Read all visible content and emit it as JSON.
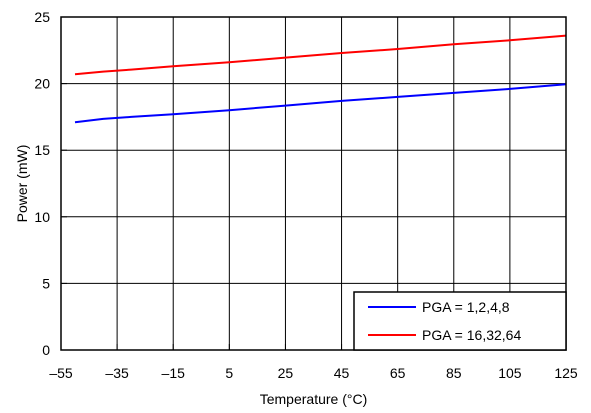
{
  "chart_data": {
    "type": "line",
    "title": "",
    "xlabel": "Temperature (°C)",
    "ylabel": "Power (mW)",
    "xlim": [
      -55,
      125
    ],
    "ylim": [
      0,
      25
    ],
    "x_ticks": [
      -55,
      -35,
      -15,
      5,
      25,
      45,
      65,
      85,
      105,
      125
    ],
    "x_tick_labels": [
      "–55",
      "–35",
      "–15",
      "5",
      "25",
      "45",
      "65",
      "85",
      "105",
      "125"
    ],
    "y_ticks": [
      0,
      5,
      10,
      15,
      20,
      25
    ],
    "y_tick_labels": [
      "0",
      "5",
      "10",
      "15",
      "20",
      "25"
    ],
    "grid": "vertical",
    "legend": "bottom-right",
    "series": [
      {
        "name": "PGA = 1,2,4,8",
        "color": "#0000ff",
        "x": [
          -50,
          -40,
          -30,
          -15,
          5,
          25,
          45,
          65,
          85,
          105,
          125
        ],
        "values": [
          17.1,
          17.35,
          17.5,
          17.7,
          18.0,
          18.35,
          18.7,
          19.0,
          19.3,
          19.6,
          19.95
        ]
      },
      {
        "name": "PGA = 16,32,64",
        "color": "#ff0000",
        "x": [
          -50,
          -40,
          -30,
          -15,
          5,
          25,
          45,
          65,
          85,
          105,
          125
        ],
        "values": [
          20.7,
          20.9,
          21.05,
          21.3,
          21.6,
          21.95,
          22.3,
          22.6,
          22.95,
          23.25,
          23.6
        ]
      }
    ]
  }
}
